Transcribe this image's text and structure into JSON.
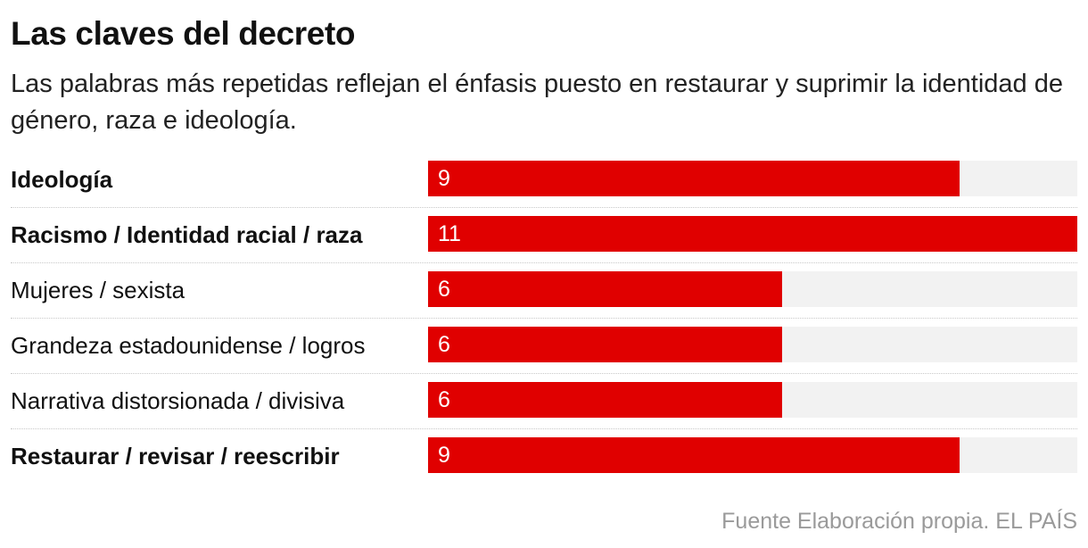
{
  "header": {
    "title": "Las claves del decreto",
    "subtitle": "Las palabras más repetidas reflejan el énfasis puesto en restaurar y suprimir la identidad de género, raza e ideología."
  },
  "footer": {
    "source": "Fuente Elaboración propia. EL PAÍS"
  },
  "colors": {
    "bar": "#e00000",
    "track": "#f2f2f2",
    "value_text": "#ffffff",
    "source_text": "#9a9a9a"
  },
  "chart_data": {
    "type": "bar",
    "orientation": "horizontal",
    "title": "Las claves del decreto",
    "subtitle": "Las palabras más repetidas reflejan el énfasis puesto en restaurar y suprimir la identidad de género, raza e ideología.",
    "categories": [
      "Ideología",
      "Racismo / Identidad racial / raza",
      "Mujeres / sexista",
      "Grandeza estadounidense / logros",
      "Narrativa distorsionada / divisiva",
      "Restaurar / revisar / reescribir"
    ],
    "values": [
      9,
      11,
      6,
      6,
      6,
      9
    ],
    "data_labels": [
      "9",
      "11",
      "6",
      "6",
      "6",
      "9"
    ],
    "emphasized": [
      true,
      true,
      false,
      false,
      false,
      true
    ],
    "xlim": [
      0,
      11
    ],
    "grid": false,
    "legend": "none"
  }
}
